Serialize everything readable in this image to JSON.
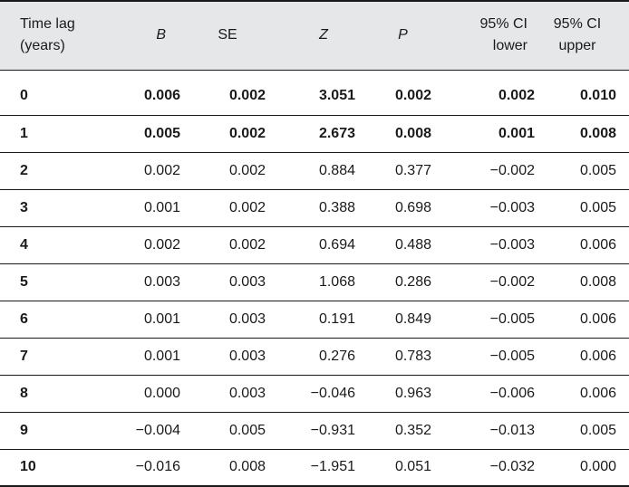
{
  "table": {
    "headers": {
      "time_lag": "Time lag\n(years)",
      "b": "B",
      "se": "SE",
      "z": "Z",
      "p": "P",
      "ci_lower": "95% CI\nlower",
      "ci_upper": "95% CI\nupper"
    },
    "rows": [
      {
        "lag": "0",
        "b": "0.006",
        "se": "0.002",
        "z": "3.051",
        "p": "0.002",
        "ci_lower": "0.002",
        "ci_upper": "0.010",
        "significant": true
      },
      {
        "lag": "1",
        "b": "0.005",
        "se": "0.002",
        "z": "2.673",
        "p": "0.008",
        "ci_lower": "0.001",
        "ci_upper": "0.008",
        "significant": true
      },
      {
        "lag": "2",
        "b": "0.002",
        "se": "0.002",
        "z": "0.884",
        "p": "0.377",
        "ci_lower": "−0.002",
        "ci_upper": "0.005",
        "significant": false
      },
      {
        "lag": "3",
        "b": "0.001",
        "se": "0.002",
        "z": "0.388",
        "p": "0.698",
        "ci_lower": "−0.003",
        "ci_upper": "0.005",
        "significant": false
      },
      {
        "lag": "4",
        "b": "0.002",
        "se": "0.002",
        "z": "0.694",
        "p": "0.488",
        "ci_lower": "−0.003",
        "ci_upper": "0.006",
        "significant": false
      },
      {
        "lag": "5",
        "b": "0.003",
        "se": "0.003",
        "z": "1.068",
        "p": "0.286",
        "ci_lower": "−0.002",
        "ci_upper": "0.008",
        "significant": false
      },
      {
        "lag": "6",
        "b": "0.001",
        "se": "0.003",
        "z": "0.191",
        "p": "0.849",
        "ci_lower": "−0.005",
        "ci_upper": "0.006",
        "significant": false
      },
      {
        "lag": "7",
        "b": "0.001",
        "se": "0.003",
        "z": "0.276",
        "p": "0.783",
        "ci_lower": "−0.005",
        "ci_upper": "0.006",
        "significant": false
      },
      {
        "lag": "8",
        "b": "0.000",
        "se": "0.003",
        "z": "−0.046",
        "p": "0.963",
        "ci_lower": "−0.006",
        "ci_upper": "0.006",
        "significant": false
      },
      {
        "lag": "9",
        "b": "−0.004",
        "se": "0.005",
        "z": "−0.931",
        "p": "0.352",
        "ci_lower": "−0.013",
        "ci_upper": "0.005",
        "significant": false
      },
      {
        "lag": "10",
        "b": "−0.016",
        "se": "0.008",
        "z": "−1.951",
        "p": "0.051",
        "ci_lower": "−0.032",
        "ci_upper": "0.000",
        "significant": false
      }
    ]
  },
  "colors": {
    "header_background": "#e6e7e8",
    "rule": "#1a1a1a"
  }
}
